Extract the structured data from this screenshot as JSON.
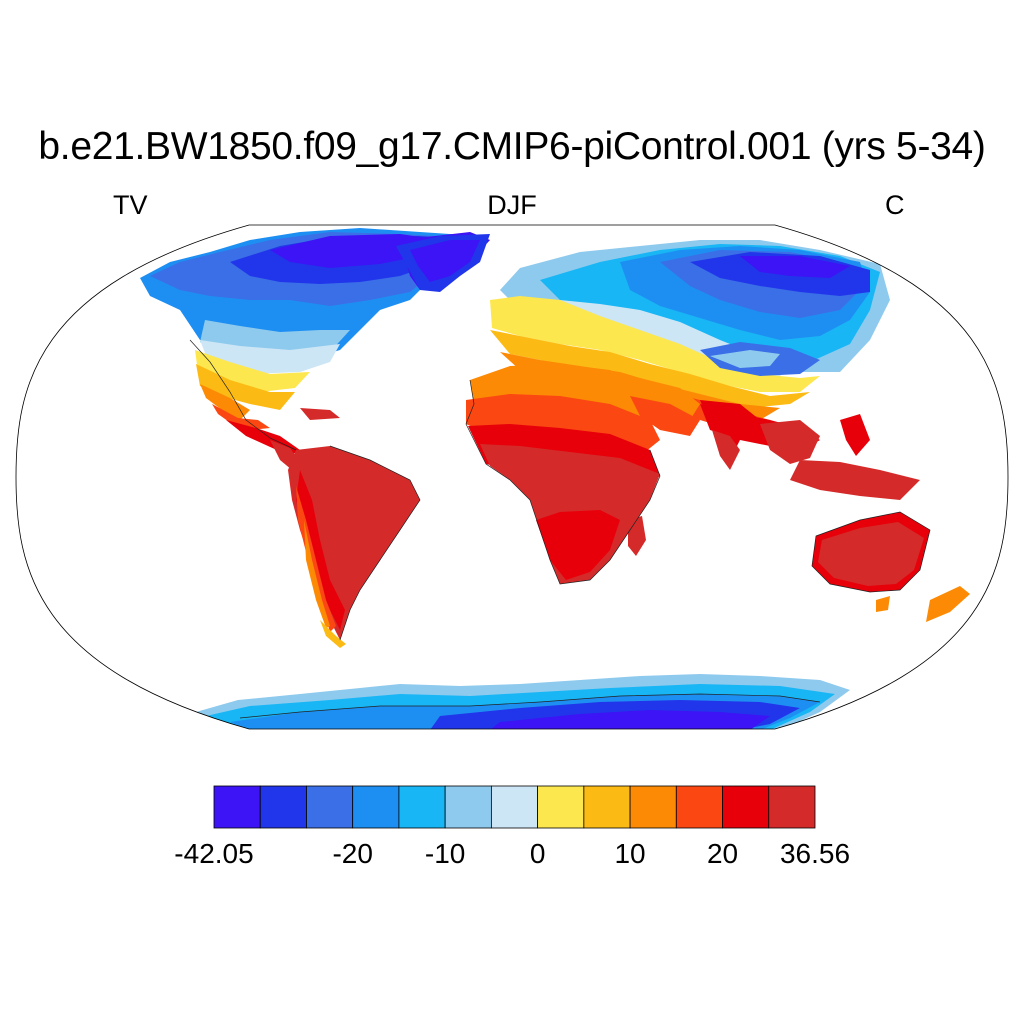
{
  "figure": {
    "title": "b.e21.BW1850.f09_g17.CMIP6-piControl.001 (yrs 5-34)",
    "left_string": "TV",
    "center_string": "DJF",
    "right_string": "C"
  },
  "map": {
    "projection": "Robinson",
    "ocean_color": "#ffffff",
    "outline_color": "#000000"
  },
  "colorbar": {
    "min": -42.05,
    "max": 36.56,
    "levels": [
      -42.05,
      -35,
      -28,
      -20,
      -15,
      -10,
      -5,
      0,
      5,
      10,
      15,
      20,
      25,
      36.56
    ],
    "colors": [
      "#3c14f5",
      "#2136ea",
      "#3a6fe7",
      "#1e8ff2",
      "#18b6f5",
      "#8ecaee",
      "#cde6f6",
      "#fde74f",
      "#fcbb14",
      "#fc8a05",
      "#fb4711",
      "#e7000a",
      "#d52a2a"
    ],
    "labels": [
      {
        "text": "-42.05",
        "value": -42.05
      },
      {
        "text": "-20",
        "value": -20
      },
      {
        "text": "-10",
        "value": -10
      },
      {
        "text": "0",
        "value": 0
      },
      {
        "text": "10",
        "value": 10
      },
      {
        "text": "20",
        "value": 20
      },
      {
        "text": "36.56",
        "value": 36.56
      }
    ]
  }
}
